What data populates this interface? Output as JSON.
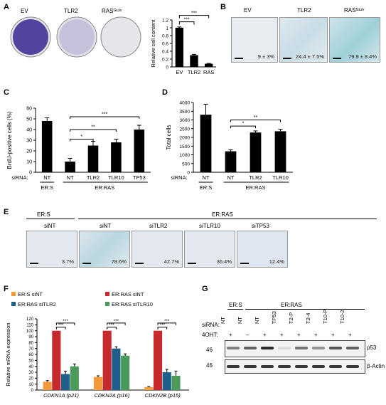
{
  "panels": {
    "A": "A",
    "B": "B",
    "C": "C",
    "D": "D",
    "E": "E",
    "F": "F",
    "G": "G"
  },
  "panelA": {
    "plates": [
      "EV",
      "TLR2",
      "RASᴳ¹²ᵛ"
    ],
    "plate_fill": [
      0.95,
      0.4,
      0.02
    ],
    "chart_data": {
      "type": "bar",
      "categories": [
        "EV",
        "TLR2",
        "RAS"
      ],
      "values": [
        1.0,
        0.3,
        0.08
      ],
      "errors": [
        0.02,
        0.02,
        0.01
      ],
      "ylabel": "Relative cell content",
      "ylim": [
        0,
        1.2
      ],
      "yticks": [
        "0",
        "0.2",
        "0.4",
        "0.6",
        "0.8",
        "1",
        "1.2"
      ],
      "significance": [
        "***",
        "***"
      ]
    }
  },
  "panelB": {
    "headers": [
      "EV",
      "TLR2",
      "RASᴳ¹²ᵛ"
    ],
    "values": [
      "9 ± 3%",
      "24.4 ± 7.5%",
      "79.9 ± 8.4%"
    ]
  },
  "panelC": {
    "chart_data": {
      "type": "bar",
      "categories": [
        "NT",
        "NT",
        "TLR2",
        "TLR10",
        "TP53"
      ],
      "values": [
        48,
        10,
        25,
        28,
        40
      ],
      "errors": [
        3,
        3,
        4,
        3,
        4
      ],
      "ylabel": "BrdU-positive cells (%)",
      "ylim": [
        0,
        60
      ],
      "yticks": [
        "0",
        "10",
        "20",
        "30",
        "40",
        "50",
        "60"
      ],
      "significance": [
        "*",
        "**",
        "***"
      ]
    },
    "sirna_label": "siRNA:",
    "group1": "ER:S",
    "group2": "ER:RAS"
  },
  "panelD": {
    "chart_data": {
      "type": "bar",
      "categories": [
        "NT",
        "NT",
        "TLR2",
        "TLR10"
      ],
      "values": [
        3300,
        1200,
        2280,
        2350
      ],
      "errors": [
        600,
        80,
        90,
        120
      ],
      "ylabel": "Total cells",
      "ylim": [
        0,
        4000
      ],
      "yticks": [
        "0",
        "500",
        "1000",
        "1500",
        "2000",
        "2500",
        "3000",
        "3500",
        "4000"
      ],
      "significance": [
        "*",
        "**"
      ]
    },
    "sirna_label": "siRNA:",
    "group1": "ER:S",
    "group2": "ER:RAS"
  },
  "panelE": {
    "group1": "ER:S",
    "group2": "ER:RAS",
    "headers": [
      "siNT",
      "siNT",
      "siTLR2",
      "siTLR10",
      "siTP53"
    ],
    "values": [
      "3.7%",
      "78.6%",
      "42.7%",
      "36.4%",
      "12.4%"
    ]
  },
  "panelF": {
    "chart_data": {
      "type": "bar",
      "categories": [
        "CDKN1A (p21)",
        "CDKN2A (p16)",
        "CDKN2B (p15)"
      ],
      "series": [
        {
          "name": "ER:S siNT",
          "color": "#f39a3a",
          "values": [
            14,
            22,
            5
          ],
          "errors": [
            2,
            2,
            1
          ]
        },
        {
          "name": "ER:RAS siNT",
          "color": "#c62a2f",
          "values": [
            100,
            100,
            100
          ],
          "errors": [
            0,
            0,
            0
          ]
        },
        {
          "name": "ER:RAS siTLR2",
          "color": "#1f5f8b",
          "values": [
            27,
            70,
            30
          ],
          "errors": [
            5,
            3,
            5
          ]
        },
        {
          "name": "ER:RAS siTLR10",
          "color": "#4a9a5a",
          "values": [
            40,
            58,
            24
          ],
          "errors": [
            4,
            3,
            8
          ]
        }
      ],
      "ylabel": "Relative mRNA expression",
      "ylim": [
        0,
        120
      ],
      "yticks": [
        "0",
        "10",
        "20",
        "30",
        "40",
        "50",
        "60",
        "70",
        "80",
        "90",
        "100",
        "110",
        "120"
      ],
      "significance": [
        "***",
        "***"
      ]
    }
  },
  "panelG": {
    "group1": "ER:S",
    "group2": "ER:RAS",
    "sirna_label": "siRNA:",
    "ohtlabel": "4OHT:",
    "lanes": [
      "NT",
      "NT",
      "NT",
      "TP53",
      "T2-P",
      "T2-4",
      "T10-P",
      "T10-2"
    ],
    "oht": [
      "+",
      "–",
      "+",
      "+",
      "+",
      "+",
      "+",
      "+"
    ],
    "marker1": "46",
    "marker2": "46",
    "protein1": "p53",
    "protein2": "β-Actin",
    "p53_intensity": [
      0.55,
      0.7,
      0.95,
      0.1,
      0.6,
      0.45,
      0.75,
      0.7
    ]
  }
}
